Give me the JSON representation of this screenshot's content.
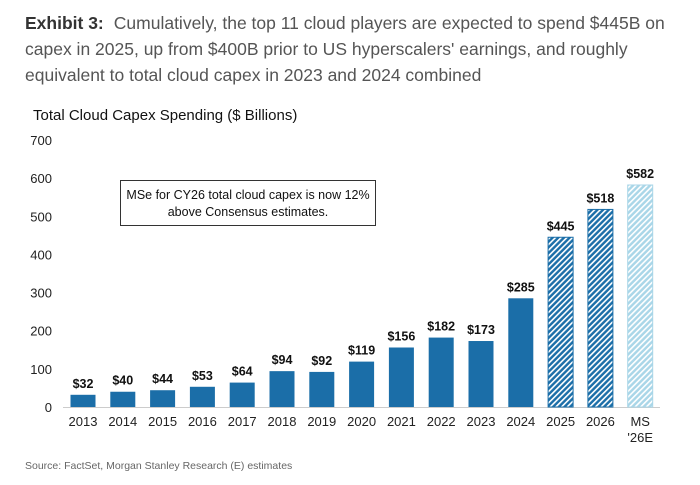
{
  "header": {
    "exhibit": "Exhibit 3:",
    "text": "Cumulatively, the top 11 cloud players are expected to spend $445B on capex in 2025, up from $400B prior to US hyperscalers' earnings, and roughly equivalent to total cloud capex in 2023 and 2024 combined"
  },
  "source": "Source: FactSet, Morgan Stanley Research (E) estimates",
  "annotation": "MSe for CY26 total cloud capex is now 12% above Consensus estimates.",
  "chart_data": {
    "type": "bar",
    "title": "Total Cloud Capex Spending ($ Billions)",
    "categories": [
      "2013",
      "2014",
      "2015",
      "2016",
      "2017",
      "2018",
      "2019",
      "2020",
      "2021",
      "2022",
      "2023",
      "2024",
      "2025",
      "2026",
      "MS '26E"
    ],
    "values": [
      32,
      40,
      44,
      53,
      64,
      94,
      92,
      119,
      156,
      182,
      173,
      285,
      445,
      518,
      582
    ],
    "data_labels": [
      "$32",
      "$40",
      "$44",
      "$53",
      "$64",
      "$94",
      "$92",
      "$119",
      "$156",
      "$182",
      "$173",
      "$285",
      "$445",
      "$518",
      "$582"
    ],
    "styles": [
      "solid",
      "solid",
      "solid",
      "solid",
      "solid",
      "solid",
      "solid",
      "solid",
      "solid",
      "solid",
      "solid",
      "solid",
      "hatched",
      "hatched",
      "light-hatched"
    ],
    "ylim": [
      0,
      700
    ],
    "yticks": [
      0,
      100,
      200,
      300,
      400,
      500,
      600,
      700
    ],
    "grid": false,
    "colors": {
      "solid": "#1b6ea8",
      "hatched": "#1b6ea8",
      "light": "#a9d6e8"
    }
  }
}
